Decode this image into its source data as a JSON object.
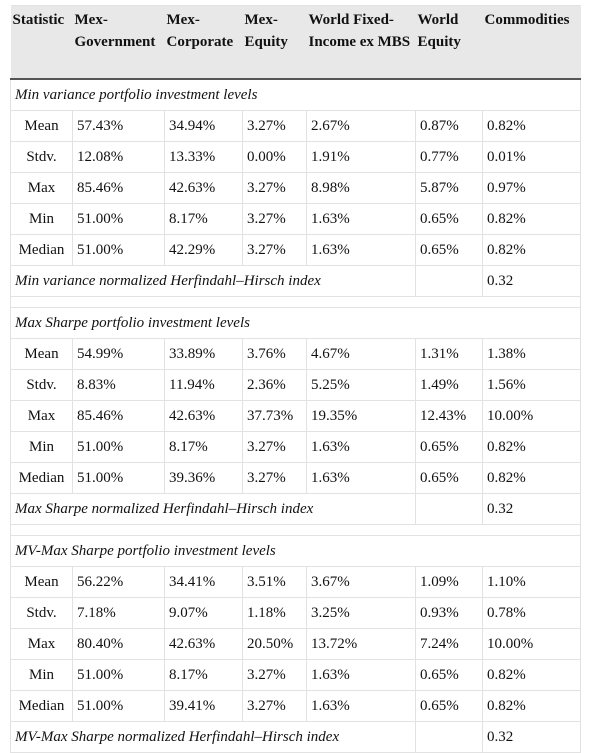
{
  "table": {
    "columns": [
      "Statistic",
      "Mex-Government",
      "Mex-Corporate",
      "Mex-Equity",
      "World Fixed-Income ex MBS",
      "World Equity",
      "Commodities"
    ],
    "sections": [
      {
        "title": "Min variance portfolio investment levels",
        "rows": [
          [
            "Mean",
            "57.43%",
            "34.94%",
            "3.27%",
            "2.67%",
            "0.87%",
            "0.82%"
          ],
          [
            "Stdv.",
            "12.08%",
            "13.33%",
            "0.00%",
            "1.91%",
            "0.77%",
            "0.01%"
          ],
          [
            "Max",
            "85.46%",
            "42.63%",
            "3.27%",
            "8.98%",
            "5.87%",
            "0.97%"
          ],
          [
            "Min",
            "51.00%",
            "8.17%",
            "3.27%",
            "1.63%",
            "0.65%",
            "0.82%"
          ],
          [
            "Median",
            "51.00%",
            "42.29%",
            "3.27%",
            "1.63%",
            "0.65%",
            "0.82%"
          ]
        ],
        "index_label": "Min variance normalized Herfindahl–Hirsch index",
        "index_value": "0.32"
      },
      {
        "title": "Max Sharpe portfolio investment levels",
        "rows": [
          [
            "Mean",
            "54.99%",
            "33.89%",
            "3.76%",
            "4.67%",
            "1.31%",
            "1.38%"
          ],
          [
            "Stdv.",
            "8.83%",
            "11.94%",
            "2.36%",
            "5.25%",
            "1.49%",
            "1.56%"
          ],
          [
            "Max",
            "85.46%",
            "42.63%",
            "37.73%",
            "19.35%",
            "12.43%",
            "10.00%"
          ],
          [
            "Min",
            "51.00%",
            "8.17%",
            "3.27%",
            "1.63%",
            "0.65%",
            "0.82%"
          ],
          [
            "Median",
            "51.00%",
            "39.36%",
            "3.27%",
            "1.63%",
            "0.65%",
            "0.82%"
          ]
        ],
        "index_label": "Max Sharpe normalized Herfindahl–Hirsch index",
        "index_value": "0.32"
      },
      {
        "title": "MV-Max Sharpe portfolio investment levels",
        "rows": [
          [
            "Mean",
            "56.22%",
            "34.41%",
            "3.51%",
            "3.67%",
            "1.09%",
            "1.10%"
          ],
          [
            "Stdv.",
            "7.18%",
            "9.07%",
            "1.18%",
            "3.25%",
            "0.93%",
            "0.78%"
          ],
          [
            "Max",
            "80.40%",
            "42.63%",
            "20.50%",
            "13.72%",
            "7.24%",
            "10.00%"
          ],
          [
            "Min",
            "51.00%",
            "8.17%",
            "3.27%",
            "1.63%",
            "0.65%",
            "0.82%"
          ],
          [
            "Median",
            "51.00%",
            "39.41%",
            "3.27%",
            "1.63%",
            "0.65%",
            "0.82%"
          ]
        ],
        "index_label": "MV-Max Sharpe normalized Herfindahl–Hirsch index",
        "index_value": "0.32"
      }
    ]
  }
}
